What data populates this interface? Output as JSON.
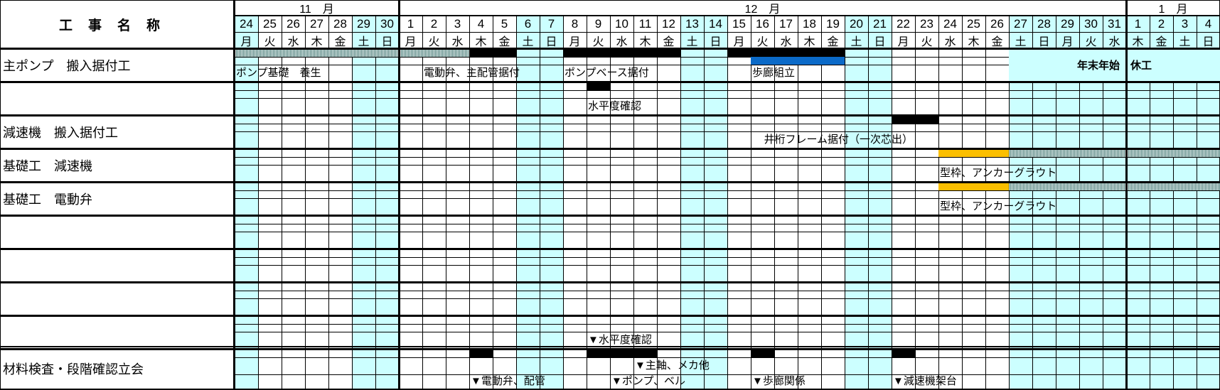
{
  "header": {
    "title": "工事名称",
    "months": [
      {
        "label": "11　月",
        "from": "11-24",
        "to": "11-30"
      },
      {
        "label": "12　月",
        "from": "12-01",
        "to": "12-31"
      },
      {
        "label": "1　月",
        "from": "01-01",
        "to": "01-04"
      }
    ]
  },
  "colors": {
    "holiday": "#ccffff",
    "bar_black": "#000000",
    "bar_blue": "#0b6ac8",
    "bar_orange": "#fbbf00",
    "bar_hatch": "#4d7f7b"
  },
  "days": [
    {
      "key": "11-24",
      "day": "24",
      "wd": "月",
      "holiday": true
    },
    {
      "key": "11-25",
      "day": "25",
      "wd": "火",
      "holiday": false
    },
    {
      "key": "11-26",
      "day": "26",
      "wd": "水",
      "holiday": false
    },
    {
      "key": "11-27",
      "day": "27",
      "wd": "木",
      "holiday": false
    },
    {
      "key": "11-28",
      "day": "28",
      "wd": "金",
      "holiday": false
    },
    {
      "key": "11-29",
      "day": "29",
      "wd": "土",
      "holiday": true
    },
    {
      "key": "11-30",
      "day": "30",
      "wd": "日",
      "holiday": true
    },
    {
      "key": "12-01",
      "day": "1",
      "wd": "月",
      "holiday": false
    },
    {
      "key": "12-02",
      "day": "2",
      "wd": "火",
      "holiday": false
    },
    {
      "key": "12-03",
      "day": "3",
      "wd": "水",
      "holiday": false
    },
    {
      "key": "12-04",
      "day": "4",
      "wd": "木",
      "holiday": false
    },
    {
      "key": "12-05",
      "day": "5",
      "wd": "金",
      "holiday": false
    },
    {
      "key": "12-06",
      "day": "6",
      "wd": "土",
      "holiday": true
    },
    {
      "key": "12-07",
      "day": "7",
      "wd": "日",
      "holiday": true
    },
    {
      "key": "12-08",
      "day": "8",
      "wd": "月",
      "holiday": false
    },
    {
      "key": "12-09",
      "day": "9",
      "wd": "火",
      "holiday": false
    },
    {
      "key": "12-10",
      "day": "10",
      "wd": "水",
      "holiday": false
    },
    {
      "key": "12-11",
      "day": "11",
      "wd": "木",
      "holiday": false
    },
    {
      "key": "12-12",
      "day": "12",
      "wd": "金",
      "holiday": false
    },
    {
      "key": "12-13",
      "day": "13",
      "wd": "土",
      "holiday": true
    },
    {
      "key": "12-14",
      "day": "14",
      "wd": "日",
      "holiday": true
    },
    {
      "key": "12-15",
      "day": "15",
      "wd": "月",
      "holiday": false
    },
    {
      "key": "12-16",
      "day": "16",
      "wd": "火",
      "holiday": false
    },
    {
      "key": "12-17",
      "day": "17",
      "wd": "水",
      "holiday": false
    },
    {
      "key": "12-18",
      "day": "18",
      "wd": "木",
      "holiday": false
    },
    {
      "key": "12-19",
      "day": "19",
      "wd": "金",
      "holiday": false
    },
    {
      "key": "12-20",
      "day": "20",
      "wd": "土",
      "holiday": true
    },
    {
      "key": "12-21",
      "day": "21",
      "wd": "日",
      "holiday": true
    },
    {
      "key": "12-22",
      "day": "22",
      "wd": "月",
      "holiday": false
    },
    {
      "key": "12-23",
      "day": "23",
      "wd": "火",
      "holiday": false
    },
    {
      "key": "12-24",
      "day": "24",
      "wd": "水",
      "holiday": false
    },
    {
      "key": "12-25",
      "day": "25",
      "wd": "木",
      "holiday": false
    },
    {
      "key": "12-26",
      "day": "26",
      "wd": "金",
      "holiday": false
    },
    {
      "key": "12-27",
      "day": "27",
      "wd": "土",
      "holiday": true
    },
    {
      "key": "12-28",
      "day": "28",
      "wd": "日",
      "holiday": true
    },
    {
      "key": "12-29",
      "day": "29",
      "wd": "月",
      "holiday": true
    },
    {
      "key": "12-30",
      "day": "30",
      "wd": "火",
      "holiday": true
    },
    {
      "key": "12-31",
      "day": "31",
      "wd": "水",
      "holiday": true
    },
    {
      "key": "01-01",
      "day": "1",
      "wd": "木",
      "holiday": true
    },
    {
      "key": "01-02",
      "day": "2",
      "wd": "金",
      "holiday": true
    },
    {
      "key": "01-03",
      "day": "3",
      "wd": "土",
      "holiday": true
    },
    {
      "key": "01-04",
      "day": "4",
      "wd": "日",
      "holiday": true
    }
  ],
  "sections": [
    {
      "name": "主ポンプ　搬入据付工",
      "bars": [
        {
          "sub": 0,
          "from": "11-24",
          "to": "12-03",
          "style": "hatch"
        },
        {
          "sub": 0,
          "from": "12-04",
          "to": "12-05",
          "style": "black"
        },
        {
          "sub": 0,
          "from": "12-08",
          "to": "12-12",
          "style": "black"
        },
        {
          "sub": 0,
          "from": "12-15",
          "to": "12-19",
          "style": "black"
        },
        {
          "sub": 1,
          "from": "12-16",
          "to": "12-19",
          "style": "blue"
        }
      ],
      "labels": [
        {
          "sub": 2,
          "at": "11-24",
          "text": "ポンプ基礎　養生"
        },
        {
          "sub": 2,
          "at": "12-02",
          "text": "電動弁、主配管据付"
        },
        {
          "sub": 2,
          "at": "12-08",
          "text": "ポンプベース据付"
        },
        {
          "sub": 2,
          "at": "12-16",
          "text": "歩廊組立"
        }
      ],
      "merged": {
        "from": "12-27",
        "to": "01-04",
        "text": "年末年始　休工"
      }
    },
    {
      "name": "",
      "bars": [
        {
          "sub": 0,
          "from": "12-09",
          "to": "12-09",
          "style": "black"
        }
      ],
      "labels": [
        {
          "sub": 2,
          "at": "12-09",
          "text": "水平度確認"
        }
      ]
    },
    {
      "name": "減速機　搬入据付工",
      "bars": [
        {
          "sub": 0,
          "from": "12-22",
          "to": "12-23",
          "style": "black"
        }
      ],
      "labels": [
        {
          "sub": 2,
          "at": "12-16",
          "text": "井桁フレーム据付（一次芯出）",
          "shift": 0.5
        }
      ]
    },
    {
      "name": "基礎工　減速機",
      "bars": [
        {
          "sub": 0,
          "from": "12-24",
          "to": "12-26",
          "style": "orange"
        },
        {
          "sub": 0,
          "from": "12-27",
          "to": "01-04",
          "style": "hatch"
        }
      ],
      "labels": [
        {
          "sub": 2,
          "at": "12-24",
          "text": "型枠、アンカーグラウト"
        }
      ]
    },
    {
      "name": "基礎工　電動弁",
      "bars": [
        {
          "sub": 0,
          "from": "12-24",
          "to": "12-26",
          "style": "orange"
        },
        {
          "sub": 0,
          "from": "12-27",
          "to": "01-04",
          "style": "hatch"
        }
      ],
      "labels": [
        {
          "sub": 2,
          "at": "12-24",
          "text": "型枠、アンカーグラウト"
        }
      ]
    },
    {
      "name": "",
      "bars": [],
      "labels": []
    },
    {
      "name": "",
      "bars": [],
      "labels": []
    },
    {
      "name": "",
      "bars": [],
      "labels": []
    },
    {
      "name": "",
      "bars": [],
      "labels": [
        {
          "sub": 2,
          "at": "12-09",
          "text": "▼水平度確認"
        }
      ]
    },
    {
      "name": "材料検査・段階確認立会",
      "bars": [
        {
          "sub": 0,
          "from": "12-04",
          "to": "12-04",
          "style": "black"
        },
        {
          "sub": 0,
          "from": "12-09",
          "to": "12-11",
          "style": "black"
        },
        {
          "sub": 0,
          "from": "12-16",
          "to": "12-16",
          "style": "black"
        },
        {
          "sub": 0,
          "from": "12-22",
          "to": "12-22",
          "style": "black"
        }
      ],
      "labels": [
        {
          "sub": 1,
          "at": "12-11",
          "text": "▼主軸、メカ他"
        },
        {
          "sub": 2,
          "at": "12-04",
          "text": "▼電動弁、配管"
        },
        {
          "sub": 2,
          "at": "12-10",
          "text": "▼ポンプ、ベル"
        },
        {
          "sub": 2,
          "at": "12-16",
          "text": "▼歩廊関係"
        },
        {
          "sub": 2,
          "at": "12-22",
          "text": "▼減速機架台"
        }
      ]
    }
  ]
}
